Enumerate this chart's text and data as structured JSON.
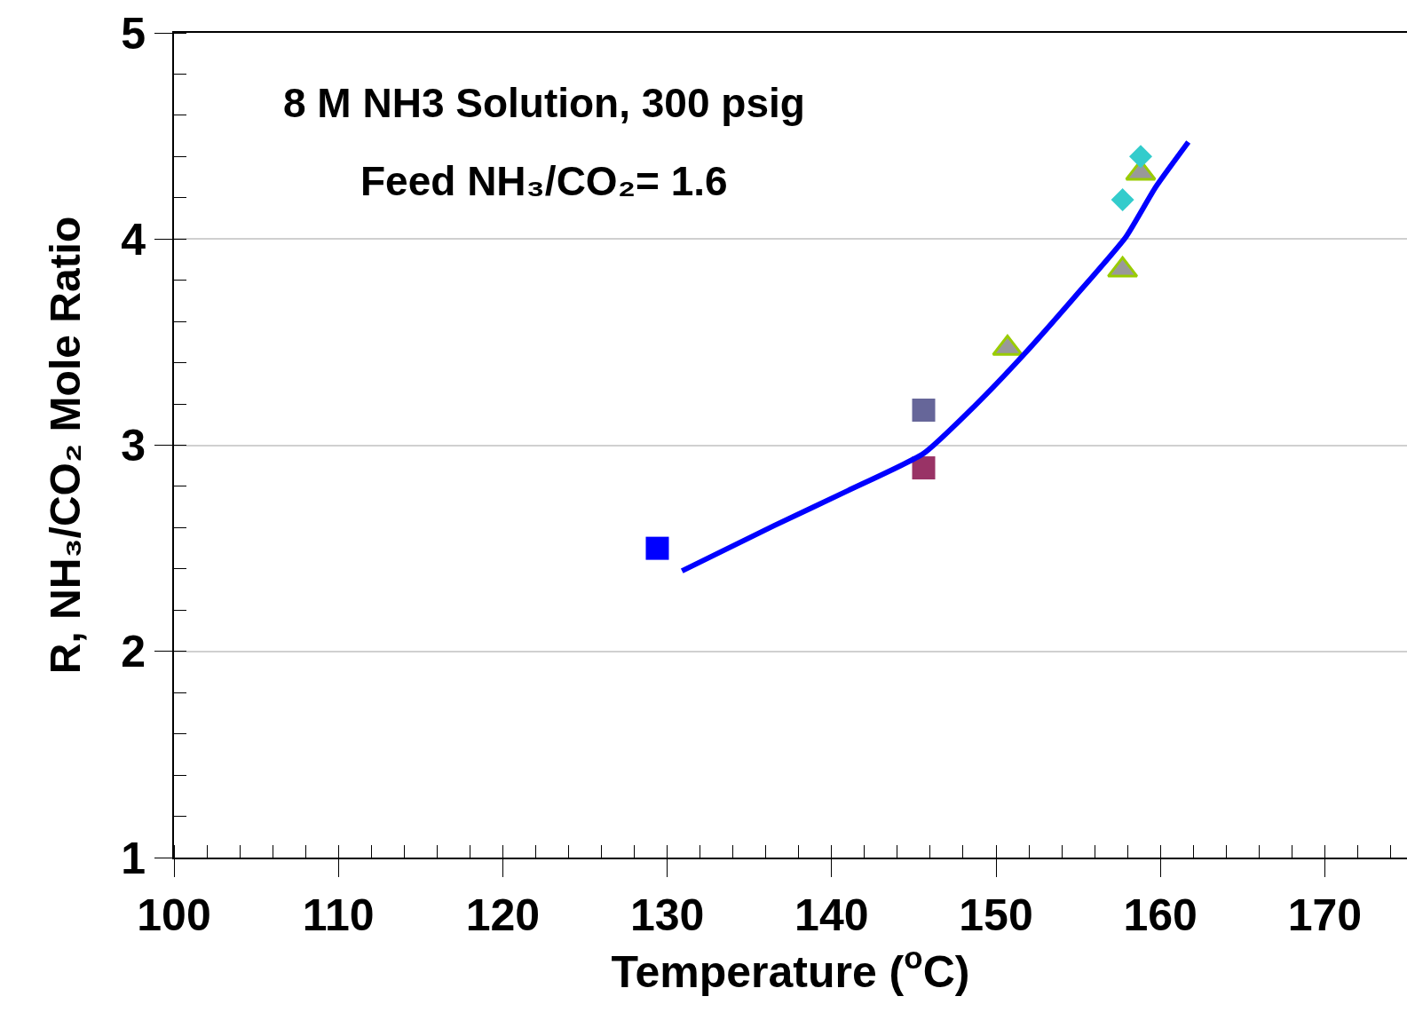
{
  "chart_data": {
    "type": "scatter",
    "xlabel": "Temperature ($^{o}$C)",
    "ylabel": "R, NH₃/CO₂ Mole Ratio",
    "annotations": [
      "8 M NH3 Solution, 300 psig",
      "Feed NH₃/CO₂= 1.6"
    ],
    "xlim": [
      100,
      175
    ],
    "xticks": [
      100,
      110,
      120,
      130,
      140,
      150,
      160,
      170
    ],
    "ylim": [
      1,
      5
    ],
    "yticks": [
      1,
      2,
      3,
      4,
      5
    ],
    "grid": "y",
    "series": [
      {
        "color": "#0000ff",
        "marker": "square",
        "x": [
          129.4
        ],
        "values": [
          2.5
        ]
      },
      {
        "color": "#666699",
        "marker": "square",
        "x": [
          145.6
        ],
        "values": [
          3.17
        ]
      },
      {
        "color": "#993366",
        "marker": "square",
        "x": [
          145.6
        ],
        "values": [
          2.89
        ]
      },
      {
        "color": "#999999",
        "marker": "triangle",
        "x": [
          150.7,
          157.7,
          158.8
        ],
        "values": [
          3.47,
          3.85,
          4.32
        ]
      },
      {
        "color": "#33cccc",
        "marker": "diamond",
        "x": [
          157.7,
          158.8
        ],
        "values": [
          4.19,
          4.4
        ]
      },
      {
        "type": "line",
        "color": "#0000ff",
        "marker": "none",
        "line_style": "solid",
        "x": [
          130.9,
          136.5,
          141.0,
          145.6,
          148.7,
          151.7,
          154.8,
          157.9,
          159.7,
          161.7
        ],
        "values": [
          2.39,
          2.61,
          2.78,
          2.96,
          3.19,
          3.44,
          3.72,
          4.01,
          4.25,
          4.47
        ]
      }
    ]
  }
}
